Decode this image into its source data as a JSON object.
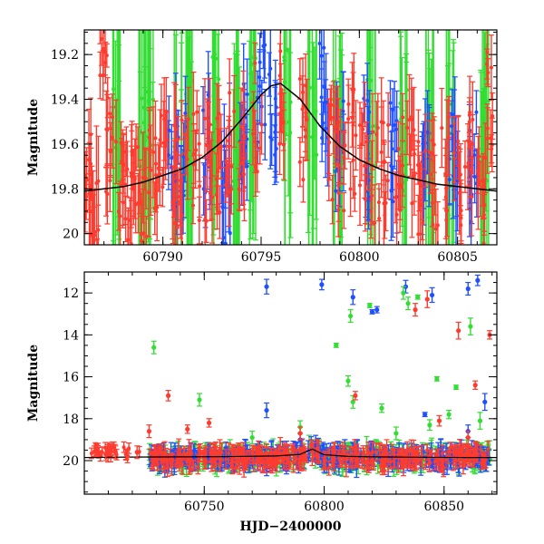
{
  "chart_data": [
    {
      "type": "scatter",
      "title": "",
      "ylabel": "Magnitude",
      "xlabel": "",
      "xlim": [
        60786,
        60807
      ],
      "ylim": [
        20.05,
        19.09
      ],
      "y_inverted": true,
      "x_ticks": [
        60790,
        60795,
        60800,
        60805
      ],
      "y_ticks": [
        19.2,
        19.4,
        19.6,
        19.8,
        20
      ],
      "y_tick_labels": [
        "19.2",
        "19.4",
        "19.6",
        "19.8",
        "20"
      ],
      "series": [
        {
          "color": "#ff3b2f",
          "points": [
            [
              60786.2,
              19.78,
              0.18
            ],
            [
              60786.5,
              19.92,
              0.2
            ],
            [
              60787.0,
              19.22,
              0.1
            ],
            [
              60787.3,
              19.6,
              0.14
            ],
            [
              60787.8,
              19.72,
              0.16
            ],
            [
              60788.2,
              19.85,
              0.18
            ],
            [
              60788.6,
              19.68,
              0.14
            ],
            [
              60789.0,
              19.8,
              0.16
            ],
            [
              60789.5,
              19.76,
              0.16
            ],
            [
              60790.0,
              19.7,
              0.15
            ],
            [
              60790.6,
              19.75,
              0.16
            ],
            [
              60791.1,
              19.72,
              0.16
            ],
            [
              60791.7,
              19.7,
              0.15
            ],
            [
              60792.3,
              19.72,
              0.16
            ],
            [
              60792.9,
              19.66,
              0.15
            ],
            [
              60793.4,
              19.62,
              0.14
            ],
            [
              60794.0,
              19.6,
              0.14
            ],
            [
              60794.8,
              19.48,
              0.12
            ],
            [
              60796.0,
              19.4,
              0.12
            ],
            [
              60797.2,
              19.55,
              0.14
            ],
            [
              60798.6,
              19.62,
              0.14
            ],
            [
              60799.1,
              19.7,
              0.15
            ],
            [
              60799.6,
              19.6,
              0.14
            ],
            [
              60800.2,
              19.62,
              0.14
            ],
            [
              60800.8,
              19.72,
              0.15
            ],
            [
              60801.3,
              19.75,
              0.16
            ],
            [
              60802.0,
              19.68,
              0.15
            ],
            [
              60802.6,
              19.72,
              0.16
            ],
            [
              60803.2,
              19.76,
              0.16
            ],
            [
              60803.8,
              19.74,
              0.16
            ],
            [
              60804.4,
              19.72,
              0.16
            ],
            [
              60805.0,
              19.75,
              0.16
            ],
            [
              60805.6,
              19.7,
              0.15
            ],
            [
              60806.2,
              19.8,
              0.16
            ],
            [
              60806.7,
              19.4,
              0.12
            ]
          ]
        },
        {
          "color": "#1f4fff",
          "points": [
            [
              60790.5,
              19.72,
              0.2
            ],
            [
              60791.0,
              19.66,
              0.16
            ],
            [
              60792.2,
              19.62,
              0.16
            ],
            [
              60793.2,
              19.8,
              0.18
            ],
            [
              60794.1,
              19.5,
              0.14
            ],
            [
              60795.0,
              19.38,
              0.14
            ],
            [
              60795.6,
              19.5,
              0.16
            ],
            [
              60798.2,
              19.4,
              0.18
            ],
            [
              60799.0,
              19.62,
              0.18
            ],
            [
              60800.4,
              19.64,
              0.18
            ],
            [
              60801.8,
              19.66,
              0.18
            ],
            [
              60803.4,
              19.7,
              0.18
            ],
            [
              60804.8,
              19.62,
              0.18
            ],
            [
              60805.8,
              19.7,
              0.18
            ]
          ]
        },
        {
          "color": "#33dd33",
          "points": [
            [
              60787.6,
              19.5,
              0.6
            ],
            [
              60788.9,
              19.6,
              0.6
            ],
            [
              60789.3,
              19.55,
              0.55
            ],
            [
              60790.8,
              19.7,
              0.6
            ],
            [
              60791.4,
              19.5,
              0.6
            ],
            [
              60792.7,
              19.4,
              0.5
            ],
            [
              60793.7,
              19.65,
              0.55
            ],
            [
              60794.5,
              19.45,
              0.5
            ],
            [
              60796.3,
              19.4,
              0.5
            ],
            [
              60797.6,
              19.5,
              0.55
            ],
            [
              60798.9,
              19.6,
              0.55
            ],
            [
              60800.6,
              19.55,
              0.55
            ],
            [
              60802.3,
              19.6,
              0.55
            ],
            [
              60803.6,
              19.7,
              0.55
            ],
            [
              60804.6,
              19.6,
              0.55
            ],
            [
              60806.4,
              19.55,
              0.55
            ]
          ]
        }
      ],
      "model_curve": {
        "color": "#000000",
        "x": [
          60786,
          60787,
          60788,
          60789,
          60790,
          60791,
          60792,
          60793,
          60794,
          60795,
          60795.5,
          60796,
          60797,
          60798,
          60799,
          60800,
          60801,
          60802,
          60803,
          60804,
          60805,
          60806,
          60807
        ],
        "y": [
          19.81,
          19.8,
          19.79,
          19.77,
          19.74,
          19.71,
          19.66,
          19.59,
          19.49,
          19.38,
          19.34,
          19.33,
          19.4,
          19.52,
          19.61,
          19.67,
          19.71,
          19.74,
          19.76,
          19.78,
          19.79,
          19.8,
          19.81
        ]
      }
    },
    {
      "type": "scatter",
      "title": "",
      "ylabel": "Magnitude",
      "xlabel": "HJD−2400000",
      "xlim": [
        60700,
        60872
      ],
      "ylim": [
        21.6,
        11.0
      ],
      "y_inverted": true,
      "x_ticks": [
        60750,
        60800,
        60850
      ],
      "y_ticks": [
        12,
        14,
        16,
        18,
        20
      ],
      "y_tick_labels": [
        "12",
        "14",
        "16",
        "18",
        "20"
      ],
      "band": {
        "center": 19.85,
        "spread": 0.35
      },
      "series": [
        {
          "color": "#1f4fff",
          "points": [
            [
              60776,
              11.7,
              0.35
            ],
            [
              60799,
              11.6,
              0.25
            ],
            [
              60812,
              12.2,
              0.35
            ],
            [
              60822,
              12.8,
              0.15
            ],
            [
              60834,
              11.7,
              0.3
            ],
            [
              60845,
              12.1,
              0.35
            ],
            [
              60860,
              11.8,
              0.3
            ],
            [
              60864,
              11.4,
              0.25
            ],
            [
              60820,
              12.9,
              0.1
            ],
            [
              60842,
              17.8,
              0.1
            ],
            [
              60867,
              17.2,
              0.4
            ],
            [
              60776,
              17.6,
              0.35
            ],
            [
              60790,
              19.0,
              0.3
            ],
            [
              60860,
              18.6,
              0.3
            ]
          ]
        },
        {
          "color": "#33dd33",
          "points": [
            [
              60729,
              14.6,
              0.3
            ],
            [
              60748,
              17.1,
              0.3
            ],
            [
              60805,
              14.5,
              0.1
            ],
            [
              60811,
              13.1,
              0.3
            ],
            [
              60819,
              12.6,
              0.1
            ],
            [
              60833,
              12.0,
              0.3
            ],
            [
              60835,
              12.5,
              0.3
            ],
            [
              60839,
              12.2,
              0.1
            ],
            [
              60847,
              16.1,
              0.1
            ],
            [
              60855,
              16.5,
              0.1
            ],
            [
              60861,
              13.6,
              0.4
            ],
            [
              60865,
              18.1,
              0.4
            ],
            [
              60810,
              16.2,
              0.25
            ],
            [
              60812,
              17.2,
              0.3
            ],
            [
              60824,
              17.5,
              0.2
            ],
            [
              60852,
              17.8,
              0.2
            ],
            [
              60844,
              18.3,
              0.25
            ],
            [
              60830,
              18.7,
              0.3
            ],
            [
              60790,
              18.4,
              0.3
            ],
            [
              60770,
              18.9,
              0.3
            ]
          ]
        },
        {
          "color": "#ff3b2f",
          "points": [
            [
              60705,
              19.5,
              0.3
            ],
            [
              60709,
              19.7,
              0.3
            ],
            [
              60713,
              19.6,
              0.3
            ],
            [
              60718,
              19.8,
              0.3
            ],
            [
              60722,
              19.6,
              0.3
            ],
            [
              60727,
              18.6,
              0.3
            ],
            [
              60735,
              16.9,
              0.25
            ],
            [
              60743,
              18.5,
              0.2
            ],
            [
              60752,
              18.2,
              0.2
            ],
            [
              60813,
              16.9,
              0.2
            ],
            [
              60838,
              12.8,
              0.3
            ],
            [
              60843,
              12.3,
              0.4
            ],
            [
              60848,
              18.1,
              0.25
            ],
            [
              60856,
              13.8,
              0.4
            ],
            [
              60863,
              16.4,
              0.2
            ],
            [
              60869,
              14.0,
              0.2
            ],
            [
              60860,
              18.9,
              0.3
            ],
            [
              60790,
              18.7,
              0.3
            ]
          ]
        }
      ],
      "model_curve": {
        "color": "#000000",
        "x": [
          60700,
          60720,
          60740,
          60760,
          60780,
          60790,
          60795,
          60800,
          60810,
          60820,
          60840,
          60860,
          60872
        ],
        "y": [
          19.85,
          19.83,
          19.82,
          19.81,
          19.78,
          19.7,
          19.45,
          19.72,
          19.8,
          19.82,
          19.84,
          19.85,
          19.85
        ]
      }
    }
  ]
}
